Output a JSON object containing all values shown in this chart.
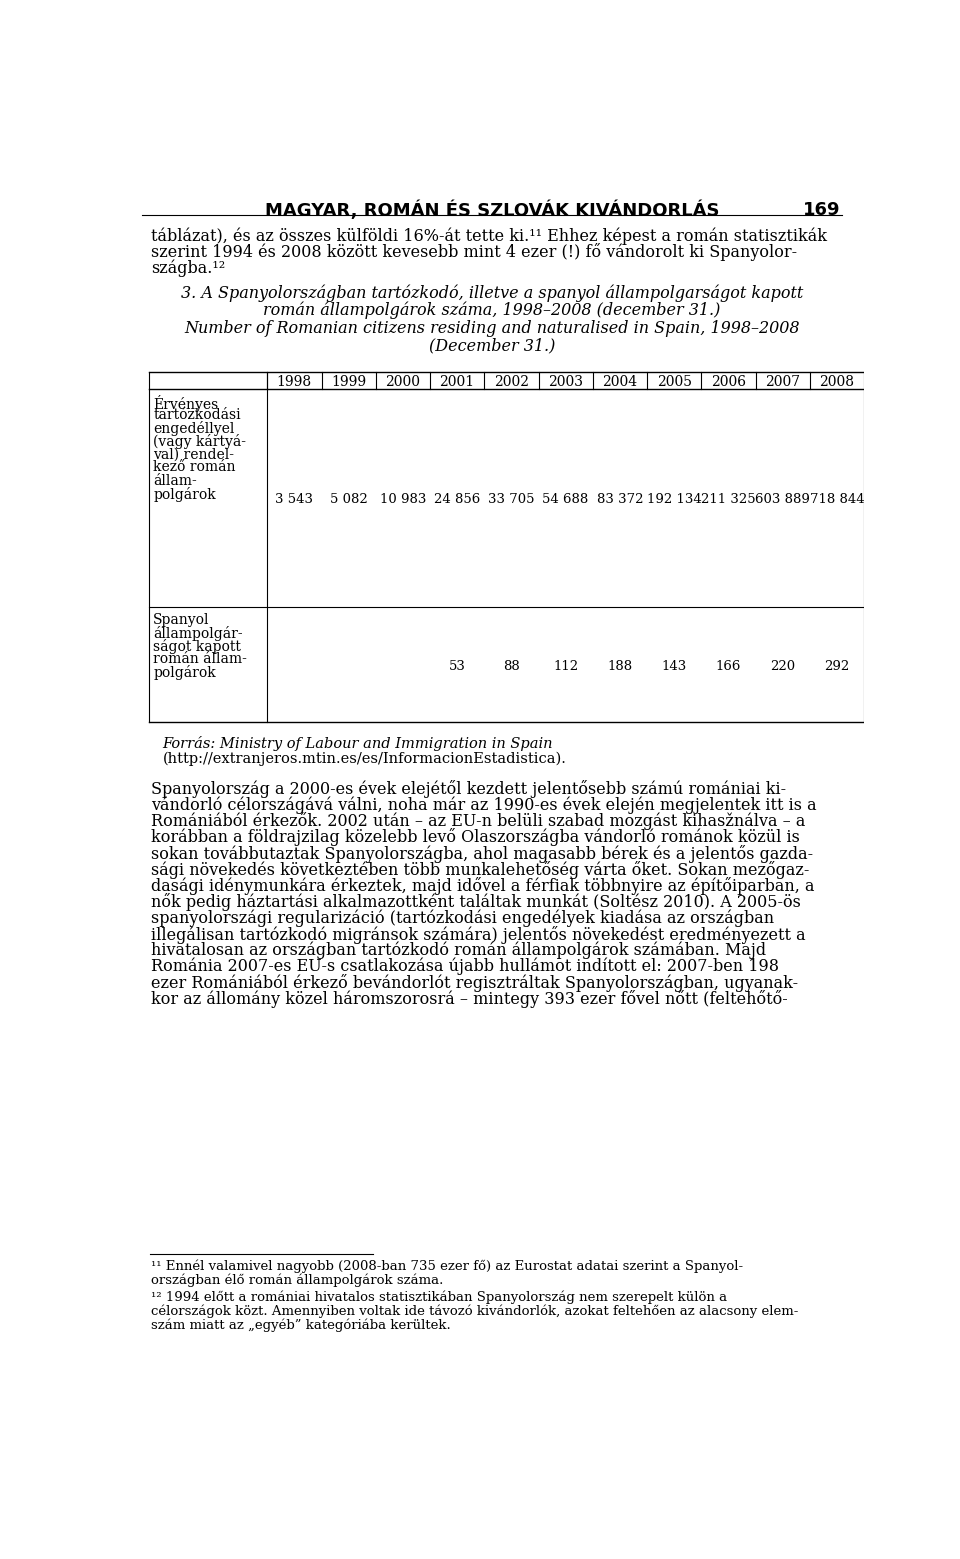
{
  "page_header": "MAGYAR, ROMÁN ÉS SZLOVÁK KIVÁNDORLÁS",
  "page_number": "169",
  "header_font_size": 13,
  "body1_lines": [
    "táblázat), és az összes külföldi 16%-át tette ki.¹¹ Ehhez képest a román statisztikák",
    "szerint 1994 és 2008 között kevesebb mint 4 ezer (!) fő vándorolt ki Spanyolor-",
    "szágba.¹²"
  ],
  "caption_lines": [
    "3. A Spanyolországban tartózkodó, illetve a spanyol állampolgarságot kapott",
    "román állampolgárok száma, 1998–2008 (december 31.)",
    "Number of Romanian citizens residing and naturalised in Spain, 1998–2008",
    "(December 31.)"
  ],
  "years": [
    "1998",
    "1999",
    "2000",
    "2001",
    "2002",
    "2003",
    "2004",
    "2005",
    "2006",
    "2007",
    "2008"
  ],
  "row1_label_lines": [
    "Érvényes",
    "tartózkodási",
    "engedéllyel",
    "(vagy kártyá-",
    "val) rendel-",
    "kező román",
    "állam-",
    "polgárok"
  ],
  "row1_values": [
    "3 543",
    "5 082",
    "10 983",
    "24 856",
    "33 705",
    "54 688",
    "83 372",
    "192 134",
    "211 325",
    "603 889",
    "718 844"
  ],
  "row2_label_lines": [
    "Spanyol",
    "állampolgár-",
    "ságot kapott",
    "román állam-",
    "polgárok"
  ],
  "row2_values": [
    "",
    "",
    "",
    "53",
    "88",
    "112",
    "188",
    "143",
    "166",
    "220",
    "292"
  ],
  "source_lines": [
    "Forrás: Ministry of Labour and Immigration in Spain",
    "(http://extranjeros.mtin.es/es/InformacionEstadistica)."
  ],
  "body2_lines": [
    "Spanyolország a 2000-es évek elejétől kezdett jelentősebb számú romániai ki-",
    "vándorló célországává válni, noha már az 1990-es évek elején megjelentek itt is a",
    "Romániából érkezők. 2002 után – az EU-n belüli szabad mozgást kihasžnálva – a",
    "korábban a földrajzilag közelebb levő Olaszországba vándorló románok közül is",
    "sokan továbbutaztak Spanyolországba, ahol magasabb bérek és a jelentős gazda-",
    "sági növekedés következtében több munkalehetőség várta őket. Sokan mezőgaz-",
    "dasági idénymunkára érkeztek, majd idővel a férfiak többnyire az építőiparban, a",
    "nők pedig háztartási alkalmazottként találtak munkát (Soltész 2010). A 2005-ös",
    "spanyolországi regularizáció (tartózkodási engedélyek kiadása az országban",
    "illegálisan tartózkodó migránsok számára) jelentős növekedést eredményezett a",
    "hivatalosan az országban tartózkodó román állampolgárok számában. Majd",
    "Románia 2007-es EU-s csatlakozása újabb hullámot indított el: 2007-ben 198",
    "ezer Romániából érkező bevándorlót regisztráltak Spanyolországban, ugyanak-",
    "kor az állomány közel háromszorosrá – mintegy 393 ezer fővel nőtt (feltehőtő-"
  ],
  "footnote11_lines": [
    "¹¹ Ennél valamivel nagyobb (2008-ban 735 ezer fő) az Eurostat adatai szerint a Spanyol-",
    "országban élő román állampolgárok száma."
  ],
  "footnote12_lines": [
    "¹² 1994 előtt a romániai hivatalos statisztikában Spanyolország nem szerepelt külön a",
    "célországok közt. Amennyiben voltak ide távozó kivándorlók, azokat feltehően az alacsony elem-",
    "szám miatt az „egyéb” kategóriába kerültek."
  ],
  "background_color": "#ffffff",
  "font_size_body": 11.5,
  "font_size_table": 10,
  "font_size_caption": 11.5,
  "font_size_footnote": 9.5
}
